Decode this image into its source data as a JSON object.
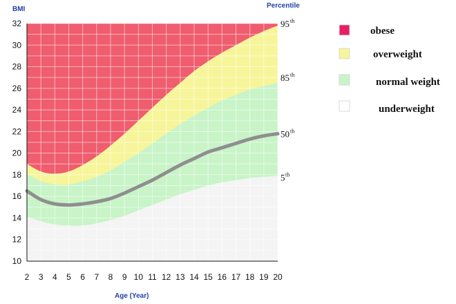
{
  "chart_data": {
    "type": "area",
    "ylabel": "BMI",
    "xlabel": "Age (Year)",
    "percentile_title": "Percentile",
    "xlim": [
      2,
      20
    ],
    "ylim": [
      10,
      32
    ],
    "x_ticks": [
      "2",
      "3",
      "4",
      "5",
      "6",
      "7",
      "8",
      "9",
      "10",
      "11",
      "12",
      "13",
      "14",
      "15",
      "16",
      "17",
      "18",
      "19",
      "20"
    ],
    "y_ticks": [
      "10",
      "12",
      "14",
      "16",
      "18",
      "20",
      "22",
      "24",
      "26",
      "28",
      "30",
      "32"
    ],
    "grid": true,
    "x": [
      2,
      3,
      4,
      5,
      6,
      7,
      8,
      9,
      10,
      11,
      12,
      13,
      14,
      15,
      16,
      17,
      18,
      19,
      20
    ],
    "percentiles": [
      {
        "label": "95",
        "suffix": "th",
        "values": [
          19.0,
          18.3,
          18.1,
          18.3,
          18.9,
          19.7,
          20.7,
          21.8,
          23.0,
          24.2,
          25.4,
          26.5,
          27.6,
          28.5,
          29.3,
          30.0,
          30.7,
          31.3,
          31.8
        ]
      },
      {
        "label": "85",
        "suffix": "th",
        "values": [
          18.1,
          17.4,
          17.1,
          17.1,
          17.4,
          17.8,
          18.4,
          19.2,
          20.0,
          20.9,
          21.8,
          22.7,
          23.5,
          24.2,
          24.9,
          25.4,
          25.9,
          26.2,
          26.5
        ]
      },
      {
        "label": "50",
        "suffix": "th",
        "values": [
          16.5,
          15.7,
          15.3,
          15.2,
          15.3,
          15.5,
          15.8,
          16.3,
          16.9,
          17.5,
          18.2,
          18.9,
          19.5,
          20.1,
          20.5,
          20.9,
          21.3,
          21.6,
          21.8
        ]
      },
      {
        "label": "5",
        "suffix": "th",
        "values": [
          14.1,
          13.7,
          13.4,
          13.3,
          13.3,
          13.5,
          13.8,
          14.2,
          14.7,
          15.2,
          15.7,
          16.2,
          16.6,
          17.0,
          17.3,
          17.5,
          17.7,
          17.8,
          17.9
        ]
      }
    ],
    "legend": [
      {
        "label": "obese",
        "color": "#ef5d6e",
        "swatch": "#e81d64"
      },
      {
        "label": "overweight",
        "color": "#f7f59a",
        "swatch": "#f7f59a"
      },
      {
        "label": "normal weight",
        "color": "#c8f4c8",
        "swatch": "#c8f4c8"
      },
      {
        "label": "underweight",
        "color": "#f4f4f4",
        "swatch": "#ffffff"
      }
    ],
    "median_color": "#8f8f8f",
    "legend_placement": "right"
  }
}
